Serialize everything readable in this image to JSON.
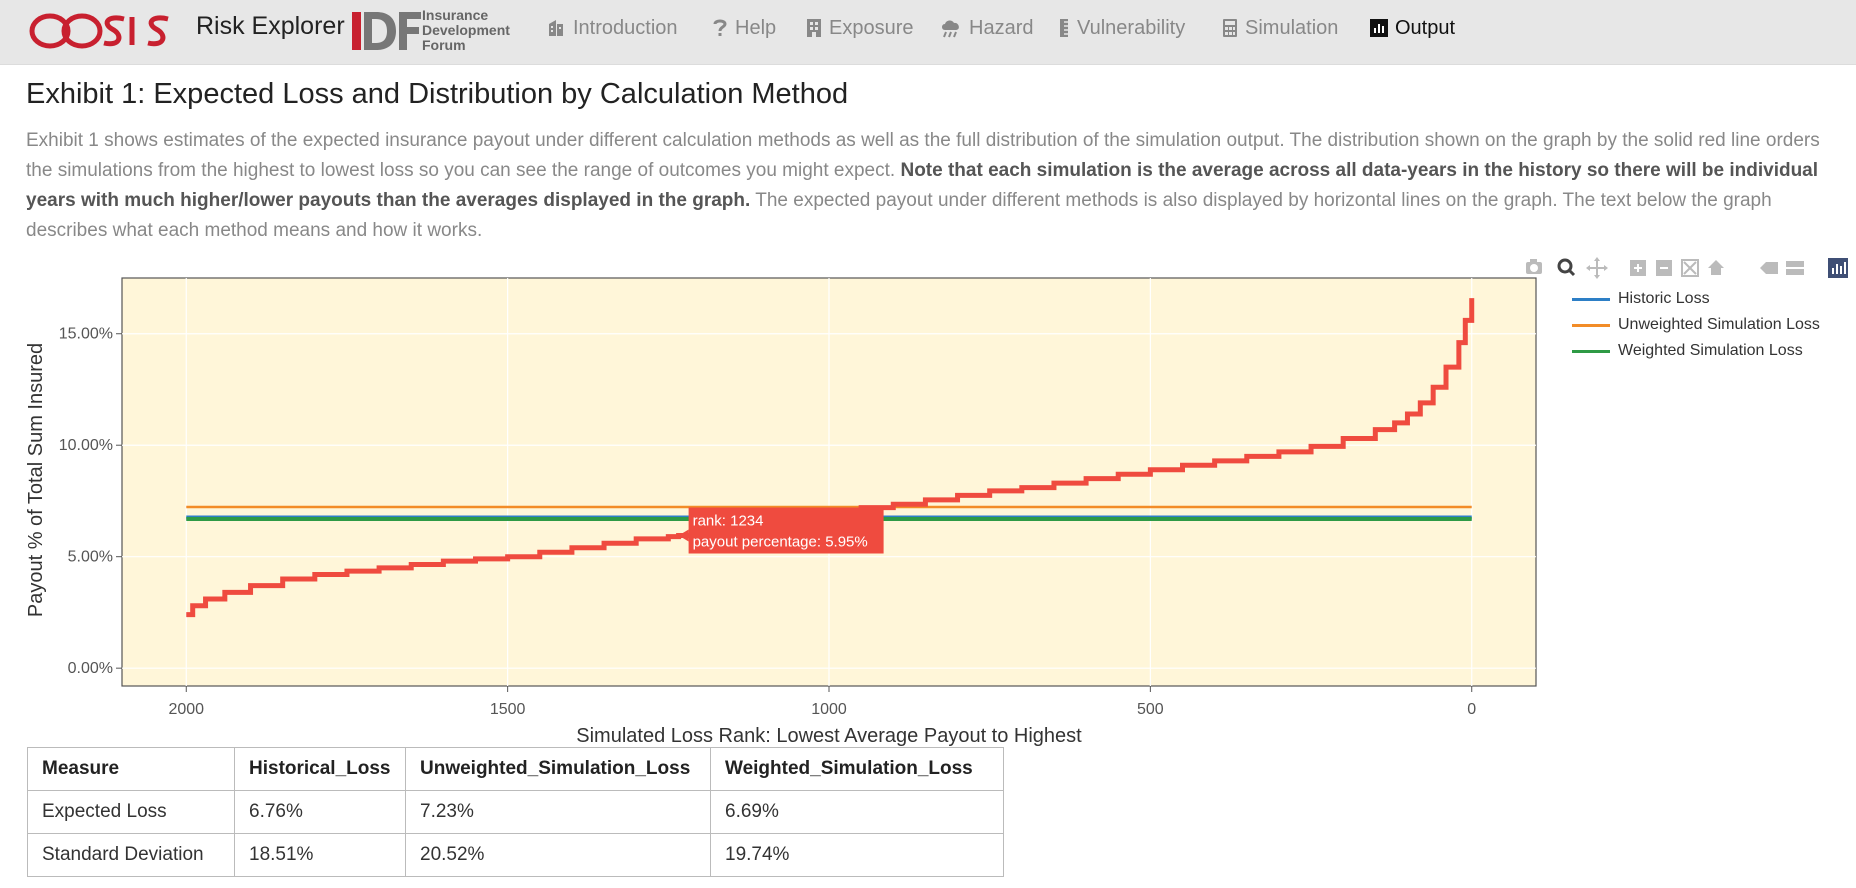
{
  "nav": {
    "brand_logo": "oasis",
    "app_name": "Risk Explorer",
    "partner_logo": "IDF",
    "partner_text": [
      "Insurance",
      "Development",
      "Forum"
    ],
    "items": [
      {
        "label": "Introduction",
        "icon": "building-icon"
      },
      {
        "label": "Help",
        "icon": "question-icon"
      },
      {
        "label": "Exposure",
        "icon": "building-icon"
      },
      {
        "label": "Hazard",
        "icon": "storm-cloud-icon"
      },
      {
        "label": "Vulnerability",
        "icon": "ruler-icon"
      },
      {
        "label": "Simulation",
        "icon": "calculator-icon"
      },
      {
        "label": "Output",
        "icon": "bar-chart-icon"
      }
    ],
    "active": "Output"
  },
  "page": {
    "title": "Exhibit 1: Expected Loss and Distribution by Calculation Method",
    "desc_part1": "Exhibit 1 shows estimates of the expected insurance payout under different calculation methods as well as the full distribution of the simulation output. The distribution shown on the graph by the solid red line orders the simulations from the highest to lowest loss so you can see the range of outcomes you might expect. ",
    "desc_bold": "Note that each simulation is the average across all data-years in the history so there will be individual years with much higher/lower payouts than the averages displayed in the graph.",
    "desc_part2": " The expected payout under different methods is also displayed by horizontal lines on the graph. The text below the graph describes what each method means and how it works."
  },
  "modebar_icons": [
    "camera-icon",
    "zoom-icon",
    "pan-icon",
    "zoom-in-icon",
    "zoom-out-icon",
    "autoscale-icon",
    "reset-axes-icon",
    "hover-closest-icon",
    "hover-compare-icon",
    "plotly-logo-icon"
  ],
  "chart_data": {
    "type": "line",
    "title": "",
    "xlabel": "Simulated Loss Rank: Lowest Average Payout to Highest",
    "ylabel": "Payout % of Total Sum Insured",
    "xlim": [
      2100,
      -100
    ],
    "ylim": [
      -0.8,
      17.5
    ],
    "x_ticks": [
      2000,
      1500,
      1000,
      500,
      0
    ],
    "y_ticks": [
      0,
      5,
      10,
      15
    ],
    "y_tick_labels": [
      "0.00%",
      "5.00%",
      "10.00%",
      "15.00%"
    ],
    "plot_bg": "#fff6d9",
    "legend_position": "right",
    "series": [
      {
        "name": "Historic Loss",
        "color": "#2d7fc6",
        "value": 6.76
      },
      {
        "name": "Unweighted Simulation Loss",
        "color": "#f28c28",
        "value": 7.23
      },
      {
        "name": "Weighted Simulation Loss",
        "color": "#2e9a45",
        "value": 6.69
      }
    ],
    "distribution": {
      "color": "#ef4b3f",
      "x": [
        2000,
        1990,
        1970,
        1940,
        1900,
        1850,
        1800,
        1750,
        1700,
        1650,
        1600,
        1550,
        1500,
        1450,
        1400,
        1350,
        1300,
        1250,
        1234,
        1200,
        1150,
        1100,
        1050,
        1000,
        950,
        900,
        850,
        800,
        750,
        700,
        650,
        600,
        550,
        500,
        450,
        400,
        350,
        300,
        250,
        200,
        150,
        120,
        100,
        80,
        60,
        40,
        20,
        10,
        0
      ],
      "y": [
        2.4,
        2.8,
        3.1,
        3.4,
        3.7,
        4.0,
        4.2,
        4.35,
        4.5,
        4.65,
        4.8,
        4.9,
        5.0,
        5.2,
        5.4,
        5.6,
        5.8,
        5.9,
        5.95,
        6.2,
        6.45,
        6.7,
        6.9,
        7.05,
        7.2,
        7.35,
        7.55,
        7.75,
        7.95,
        8.1,
        8.3,
        8.5,
        8.7,
        8.9,
        9.1,
        9.3,
        9.5,
        9.7,
        9.95,
        10.3,
        10.7,
        11.0,
        11.4,
        11.9,
        12.6,
        13.5,
        14.6,
        15.6,
        16.6
      ]
    },
    "tooltip": {
      "x": 1234,
      "y": 5.95,
      "line1": "rank: 1234",
      "line2": "payout percentage: 5.95%"
    }
  },
  "table": {
    "headers": [
      "Measure",
      "Historical_Loss",
      "Unweighted_Simulation_Loss",
      "Weighted_Simulation_Loss"
    ],
    "rows": [
      [
        "Expected Loss",
        "6.76%",
        "7.23%",
        "6.69%"
      ],
      [
        "Standard Deviation",
        "18.51%",
        "20.52%",
        "19.74%"
      ]
    ]
  }
}
